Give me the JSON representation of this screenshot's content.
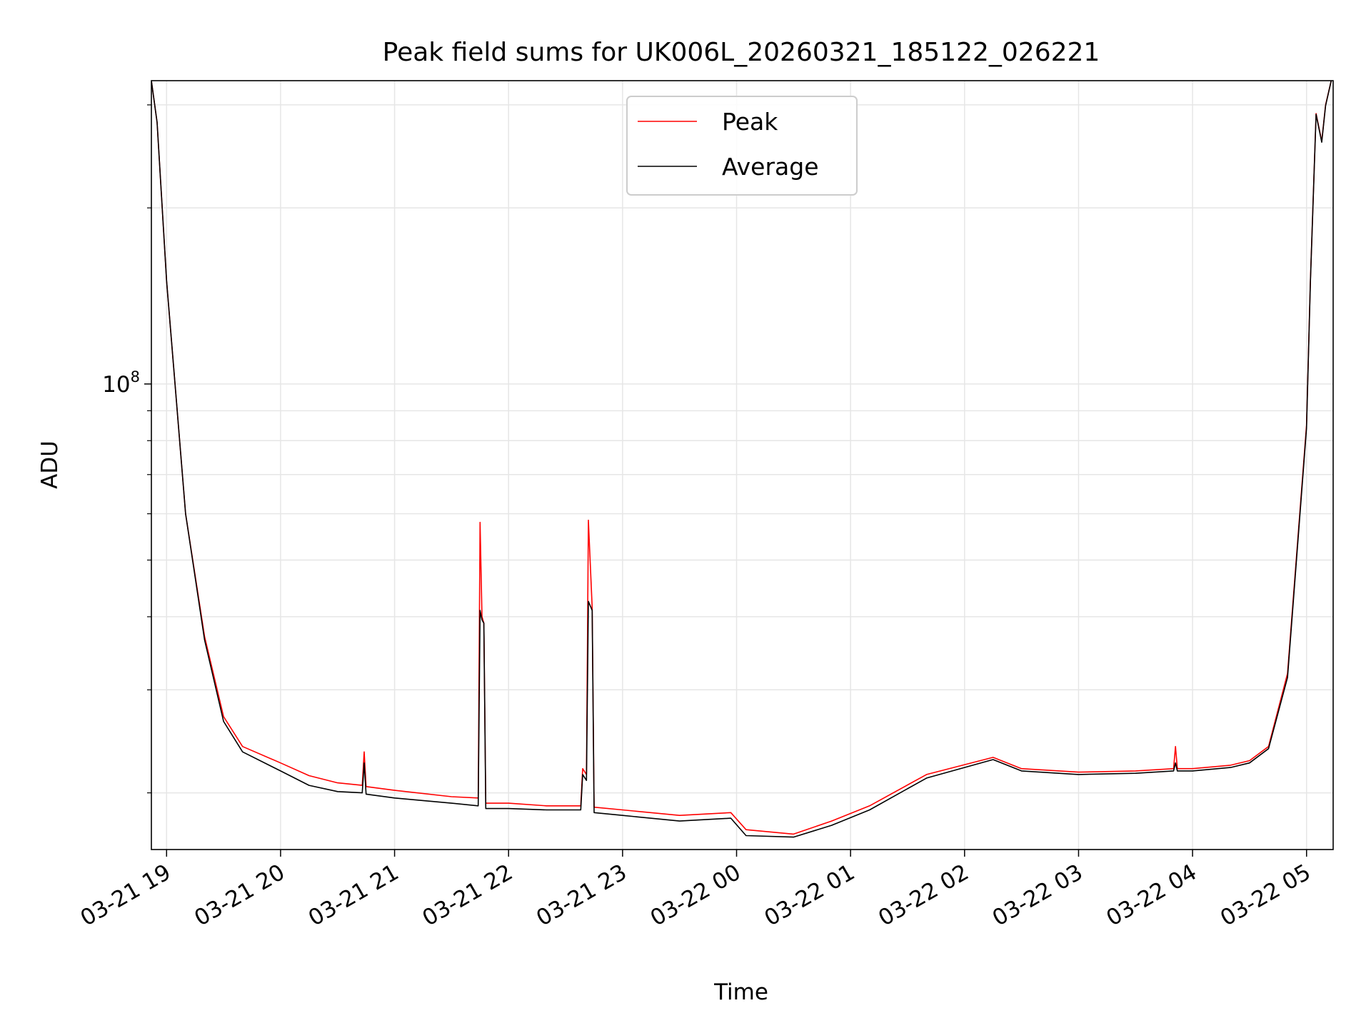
{
  "chart_data": {
    "type": "line",
    "title": "Peak field sums for UK006L_20260321_185122_026221",
    "xlabel": "Time",
    "ylabel": "ADU",
    "y_scale": "log",
    "ylim": [
      16000000,
      330000000
    ],
    "xlim": [
      "2026-03-21 18:52",
      "2026-03-22 05:14"
    ],
    "grid": true,
    "legend_position": "top-center",
    "x_ticks": [
      "03-21 19",
      "03-21 20",
      "03-21 21",
      "03-21 22",
      "03-21 23",
      "03-22 00",
      "03-22 01",
      "03-22 02",
      "03-22 03",
      "03-22 04",
      "03-22 05"
    ],
    "y_ticks": [
      {
        "value": 100000000,
        "base": "10",
        "exp": "8"
      }
    ],
    "series": [
      {
        "name": "Peak",
        "color": "#ff0000",
        "x": [
          "2026-03-21 18:52",
          "2026-03-21 18:55",
          "2026-03-21 19:00",
          "2026-03-21 19:05",
          "2026-03-21 19:10",
          "2026-03-21 19:20",
          "2026-03-21 19:30",
          "2026-03-21 19:40",
          "2026-03-21 20:00",
          "2026-03-21 20:15",
          "2026-03-21 20:30",
          "2026-03-21 20:43",
          "2026-03-21 20:44",
          "2026-03-21 20:45",
          "2026-03-21 21:00",
          "2026-03-21 21:30",
          "2026-03-21 21:44",
          "2026-03-21 21:45",
          "2026-03-21 21:46",
          "2026-03-21 21:47",
          "2026-03-21 21:48",
          "2026-03-21 22:00",
          "2026-03-21 22:20",
          "2026-03-21 22:38",
          "2026-03-21 22:39",
          "2026-03-21 22:41",
          "2026-03-21 22:42",
          "2026-03-21 22:44",
          "2026-03-21 22:45",
          "2026-03-21 23:00",
          "2026-03-21 23:30",
          "2026-03-21 23:57",
          "2026-03-22 00:05",
          "2026-03-22 00:30",
          "2026-03-22 00:50",
          "2026-03-22 01:10",
          "2026-03-22 01:40",
          "2026-03-22 02:15",
          "2026-03-22 02:30",
          "2026-03-22 03:00",
          "2026-03-22 03:30",
          "2026-03-22 03:50",
          "2026-03-22 03:51",
          "2026-03-22 03:52",
          "2026-03-22 04:00",
          "2026-03-22 04:20",
          "2026-03-22 04:30",
          "2026-03-22 04:40",
          "2026-03-22 04:50",
          "2026-03-22 05:00",
          "2026-03-22 05:02",
          "2026-03-22 05:05",
          "2026-03-22 05:08",
          "2026-03-22 05:10",
          "2026-03-22 05:13"
        ],
        "values": [
          330000000,
          280000000,
          150000000,
          95000000,
          60000000,
          37000000,
          27000000,
          24000000,
          22500000,
          21400000,
          20800000,
          20600000,
          23500000,
          20500000,
          20200000,
          19700000,
          19600000,
          58000000,
          40000000,
          39000000,
          19200000,
          19200000,
          19000000,
          19000000,
          22000000,
          21500000,
          58500000,
          41500000,
          18900000,
          18700000,
          18300000,
          18500000,
          17300000,
          17000000,
          17900000,
          19000000,
          21500000,
          23000000,
          22000000,
          21700000,
          21800000,
          22000000,
          24000000,
          22000000,
          22000000,
          22300000,
          22700000,
          24000000,
          32000000,
          85000000,
          150000000,
          290000000,
          260000000,
          300000000,
          330000000
        ]
      },
      {
        "name": "Average",
        "color": "#000000",
        "x": [
          "2026-03-21 18:52",
          "2026-03-21 18:55",
          "2026-03-21 19:00",
          "2026-03-21 19:05",
          "2026-03-21 19:10",
          "2026-03-21 19:20",
          "2026-03-21 19:30",
          "2026-03-21 19:40",
          "2026-03-21 20:00",
          "2026-03-21 20:15",
          "2026-03-21 20:30",
          "2026-03-21 20:43",
          "2026-03-21 20:44",
          "2026-03-21 20:45",
          "2026-03-21 21:00",
          "2026-03-21 21:30",
          "2026-03-21 21:44",
          "2026-03-21 21:45",
          "2026-03-21 21:46",
          "2026-03-21 21:47",
          "2026-03-21 21:48",
          "2026-03-21 22:00",
          "2026-03-21 22:20",
          "2026-03-21 22:38",
          "2026-03-21 22:39",
          "2026-03-21 22:41",
          "2026-03-21 22:42",
          "2026-03-21 22:44",
          "2026-03-21 22:45",
          "2026-03-21 23:00",
          "2026-03-21 23:30",
          "2026-03-21 23:57",
          "2026-03-22 00:05",
          "2026-03-22 00:30",
          "2026-03-22 00:50",
          "2026-03-22 01:10",
          "2026-03-22 01:40",
          "2026-03-22 02:15",
          "2026-03-22 02:30",
          "2026-03-22 03:00",
          "2026-03-22 03:30",
          "2026-03-22 03:50",
          "2026-03-22 03:51",
          "2026-03-22 03:52",
          "2026-03-22 04:00",
          "2026-03-22 04:20",
          "2026-03-22 04:30",
          "2026-03-22 04:40",
          "2026-03-22 04:50",
          "2026-03-22 05:00",
          "2026-03-22 05:02",
          "2026-03-22 05:05",
          "2026-03-22 05:08",
          "2026-03-22 05:10",
          "2026-03-22 05:13"
        ],
        "values": [
          330000000,
          280000000,
          150000000,
          95000000,
          60000000,
          36500000,
          26500000,
          23500000,
          21800000,
          20600000,
          20100000,
          20000000,
          22500000,
          19900000,
          19600000,
          19200000,
          19000000,
          41000000,
          39500000,
          39000000,
          18800000,
          18800000,
          18700000,
          18700000,
          21500000,
          21000000,
          42500000,
          41000000,
          18500000,
          18300000,
          17900000,
          18100000,
          16900000,
          16800000,
          17600000,
          18700000,
          21200000,
          22800000,
          21800000,
          21500000,
          21600000,
          21800000,
          22500000,
          21800000,
          21800000,
          22100000,
          22500000,
          23800000,
          31500000,
          84000000,
          149000000,
          289000000,
          259000000,
          299000000,
          330000000
        ]
      }
    ]
  }
}
